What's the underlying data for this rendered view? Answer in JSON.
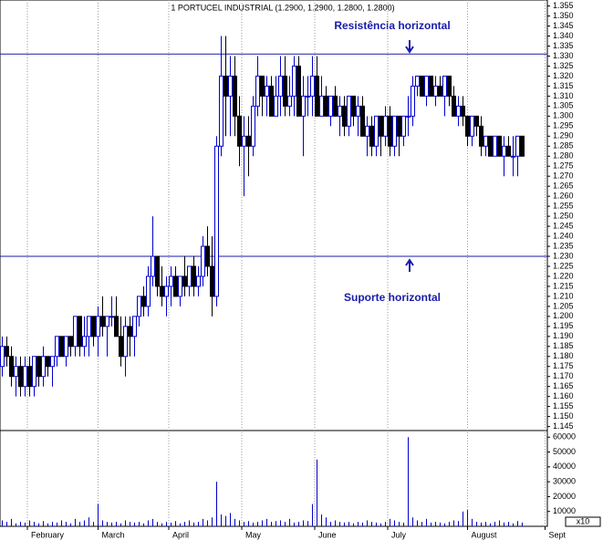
{
  "chart_data": {
    "type": "candlestick",
    "title": "1 PORTUCEL INDUSTRIAL (1.2900, 1.2900, 1.2800, 1.2800)",
    "annotations": [
      "Resistência horizontal",
      "Suporte horizontal"
    ],
    "hlines": [
      1.331,
      1.23
    ],
    "volume_unit": "x10",
    "up_color": "#0000cc",
    "down_color": "#000000",
    "line_color": "#1a1aaa",
    "grid": true,
    "xlim": [
      0,
      120
    ],
    "xticks": [
      {
        "value": 6,
        "label": "February"
      },
      {
        "value": 21.5,
        "label": "March"
      },
      {
        "value": 37,
        "label": "April"
      },
      {
        "value": 53,
        "label": "May"
      },
      {
        "value": 69,
        "label": "June"
      },
      {
        "value": 85,
        "label": "July"
      },
      {
        "value": 102.5,
        "label": "August"
      },
      {
        "value": 119.5,
        "label": "Sept"
      }
    ],
    "ylim": [
      1.143,
      1.358
    ],
    "yticks": [
      1.145,
      {
        "value": 1.15,
        "label": "1.150"
      },
      1.155,
      {
        "value": 1.16,
        "label": "1.160"
      },
      1.165,
      {
        "value": 1.17,
        "label": "1.170"
      },
      1.175,
      {
        "value": 1.18,
        "label": "1.180"
      },
      1.185,
      {
        "value": 1.19,
        "label": "1.190"
      },
      1.195,
      {
        "value": 1.2,
        "label": "1.200"
      },
      1.205,
      {
        "value": 1.21,
        "label": "1.210"
      },
      1.215,
      {
        "value": 1.22,
        "label": "1.220"
      },
      1.225,
      {
        "value": 1.23,
        "label": "1.230"
      },
      1.235,
      {
        "value": 1.24,
        "label": "1.240"
      },
      1.245,
      {
        "value": 1.25,
        "label": "1.250"
      },
      1.255,
      {
        "value": 1.26,
        "label": "1.260"
      },
      1.265,
      {
        "value": 1.27,
        "label": "1.270"
      },
      1.275,
      {
        "value": 1.28,
        "label": "1.280"
      },
      1.285,
      {
        "value": 1.29,
        "label": "1.290"
      },
      1.295,
      {
        "value": 1.3,
        "label": "1.300"
      },
      1.305,
      {
        "value": 1.31,
        "label": "1.310"
      },
      1.315,
      {
        "value": 1.32,
        "label": "1.320"
      },
      1.325,
      {
        "value": 1.33,
        "label": "1.330"
      },
      1.335,
      {
        "value": 1.34,
        "label": "1.340"
      },
      1.345,
      {
        "value": 1.35,
        "label": "1.350"
      },
      1.355
    ],
    "y2lim": [
      0,
      62000
    ],
    "y2ticks": [
      10000,
      20000,
      30000,
      40000,
      50000,
      60000
    ],
    "candles": [
      [
        1.175,
        1.19,
        1.17,
        1.185
      ],
      [
        1.185,
        1.19,
        1.175,
        1.18
      ],
      [
        1.18,
        1.185,
        1.165,
        1.17
      ],
      [
        1.17,
        1.18,
        1.16,
        1.175
      ],
      [
        1.175,
        1.18,
        1.16,
        1.165
      ],
      [
        1.165,
        1.18,
        1.16,
        1.175
      ],
      [
        1.175,
        1.18,
        1.16,
        1.165
      ],
      [
        1.165,
        1.18,
        1.16,
        1.18
      ],
      [
        1.18,
        1.18,
        1.165,
        1.17
      ],
      [
        1.17,
        1.185,
        1.165,
        1.18
      ],
      [
        1.18,
        1.18,
        1.17,
        1.175
      ],
      [
        1.175,
        1.18,
        1.165,
        1.18
      ],
      [
        1.18,
        1.19,
        1.175,
        1.19
      ],
      [
        1.19,
        1.19,
        1.18,
        1.18
      ],
      [
        1.18,
        1.19,
        1.175,
        1.19
      ],
      [
        1.19,
        1.19,
        1.18,
        1.185
      ],
      [
        1.185,
        1.2,
        1.18,
        1.2
      ],
      [
        1.2,
        1.2,
        1.18,
        1.185
      ],
      [
        1.185,
        1.2,
        1.18,
        1.19
      ],
      [
        1.19,
        1.2,
        1.18,
        1.2
      ],
      [
        1.2,
        1.2,
        1.185,
        1.19
      ],
      [
        1.19,
        1.205,
        1.18,
        1.2
      ],
      [
        1.2,
        1.21,
        1.19,
        1.195
      ],
      [
        1.195,
        1.2,
        1.18,
        1.2
      ],
      [
        1.2,
        1.21,
        1.195,
        1.2
      ],
      [
        1.2,
        1.21,
        1.19,
        1.19
      ],
      [
        1.19,
        1.2,
        1.175,
        1.18
      ],
      [
        1.18,
        1.2,
        1.17,
        1.195
      ],
      [
        1.195,
        1.2,
        1.18,
        1.19
      ],
      [
        1.19,
        1.2,
        1.18,
        1.2
      ],
      [
        1.2,
        1.21,
        1.195,
        1.21
      ],
      [
        1.21,
        1.215,
        1.2,
        1.205
      ],
      [
        1.205,
        1.225,
        1.2,
        1.22
      ],
      [
        1.22,
        1.25,
        1.215,
        1.23
      ],
      [
        1.23,
        1.23,
        1.21,
        1.215
      ],
      [
        1.215,
        1.225,
        1.205,
        1.21
      ],
      [
        1.21,
        1.22,
        1.2,
        1.215
      ],
      [
        1.215,
        1.225,
        1.205,
        1.22
      ],
      [
        1.22,
        1.225,
        1.21,
        1.21
      ],
      [
        1.21,
        1.22,
        1.205,
        1.22
      ],
      [
        1.22,
        1.23,
        1.21,
        1.215
      ],
      [
        1.215,
        1.225,
        1.21,
        1.225
      ],
      [
        1.225,
        1.23,
        1.21,
        1.215
      ],
      [
        1.215,
        1.225,
        1.21,
        1.22
      ],
      [
        1.22,
        1.24,
        1.215,
        1.235
      ],
      [
        1.235,
        1.245,
        1.22,
        1.225
      ],
      [
        1.225,
        1.24,
        1.2,
        1.21
      ],
      [
        1.21,
        1.29,
        1.205,
        1.285
      ],
      [
        1.285,
        1.34,
        1.28,
        1.32
      ],
      [
        1.32,
        1.34,
        1.29,
        1.31
      ],
      [
        1.31,
        1.33,
        1.29,
        1.32
      ],
      [
        1.32,
        1.33,
        1.29,
        1.3
      ],
      [
        1.3,
        1.31,
        1.275,
        1.285
      ],
      [
        1.285,
        1.3,
        1.26,
        1.29
      ],
      [
        1.29,
        1.3,
        1.27,
        1.285
      ],
      [
        1.285,
        1.31,
        1.28,
        1.305
      ],
      [
        1.305,
        1.33,
        1.3,
        1.32
      ],
      [
        1.32,
        1.32,
        1.3,
        1.31
      ],
      [
        1.31,
        1.32,
        1.3,
        1.315
      ],
      [
        1.315,
        1.32,
        1.3,
        1.3
      ],
      [
        1.3,
        1.32,
        1.3,
        1.31
      ],
      [
        1.31,
        1.33,
        1.3,
        1.32
      ],
      [
        1.32,
        1.33,
        1.3,
        1.305
      ],
      [
        1.305,
        1.32,
        1.3,
        1.31
      ],
      [
        1.31,
        1.33,
        1.3,
        1.325
      ],
      [
        1.325,
        1.33,
        1.3,
        1.3
      ],
      [
        1.3,
        1.32,
        1.28,
        1.31
      ],
      [
        1.31,
        1.32,
        1.3,
        1.31
      ],
      [
        1.31,
        1.33,
        1.3,
        1.32
      ],
      [
        1.32,
        1.33,
        1.3,
        1.3
      ],
      [
        1.3,
        1.32,
        1.3,
        1.31
      ],
      [
        1.31,
        1.315,
        1.3,
        1.3
      ],
      [
        1.3,
        1.31,
        1.295,
        1.31
      ],
      [
        1.31,
        1.315,
        1.3,
        1.3
      ],
      [
        1.3,
        1.31,
        1.29,
        1.305
      ],
      [
        1.305,
        1.31,
        1.29,
        1.295
      ],
      [
        1.295,
        1.31,
        1.29,
        1.31
      ],
      [
        1.31,
        1.31,
        1.295,
        1.3
      ],
      [
        1.3,
        1.31,
        1.29,
        1.305
      ],
      [
        1.305,
        1.31,
        1.29,
        1.29
      ],
      [
        1.29,
        1.3,
        1.28,
        1.295
      ],
      [
        1.295,
        1.3,
        1.28,
        1.285
      ],
      [
        1.285,
        1.3,
        1.28,
        1.3
      ],
      [
        1.3,
        1.3,
        1.28,
        1.29
      ],
      [
        1.29,
        1.305,
        1.285,
        1.3
      ],
      [
        1.3,
        1.305,
        1.28,
        1.285
      ],
      [
        1.285,
        1.3,
        1.28,
        1.3
      ],
      [
        1.3,
        1.3,
        1.28,
        1.29
      ],
      [
        1.29,
        1.3,
        1.285,
        1.3
      ],
      [
        1.3,
        1.31,
        1.29,
        1.3
      ],
      [
        1.3,
        1.32,
        1.295,
        1.315
      ],
      [
        1.315,
        1.32,
        1.31,
        1.32
      ],
      [
        1.32,
        1.32,
        1.31,
        1.31
      ],
      [
        1.31,
        1.32,
        1.305,
        1.32
      ],
      [
        1.32,
        1.32,
        1.31,
        1.31
      ],
      [
        1.31,
        1.32,
        1.305,
        1.315
      ],
      [
        1.315,
        1.32,
        1.31,
        1.31
      ],
      [
        1.31,
        1.32,
        1.3,
        1.32
      ],
      [
        1.32,
        1.32,
        1.305,
        1.31
      ],
      [
        1.31,
        1.315,
        1.3,
        1.3
      ],
      [
        1.3,
        1.31,
        1.295,
        1.305
      ],
      [
        1.305,
        1.31,
        1.295,
        1.3
      ],
      [
        1.3,
        1.3,
        1.285,
        1.29
      ],
      [
        1.29,
        1.3,
        1.285,
        1.3
      ],
      [
        1.3,
        1.3,
        1.29,
        1.295
      ],
      [
        1.295,
        1.3,
        1.28,
        1.285
      ],
      [
        1.285,
        1.29,
        1.28,
        1.29
      ],
      [
        1.29,
        1.29,
        1.28,
        1.28
      ],
      [
        1.28,
        1.29,
        1.28,
        1.29
      ],
      [
        1.29,
        1.29,
        1.28,
        1.28
      ],
      [
        1.28,
        1.29,
        1.27,
        1.285
      ],
      [
        1.285,
        1.29,
        1.28,
        1.28
      ],
      [
        1.28,
        1.29,
        1.27,
        1.28
      ],
      [
        1.28,
        1.29,
        1.27,
        1.29
      ],
      [
        1.29,
        1.29,
        1.28,
        1.28
      ]
    ],
    "volume": [
      4000,
      3000,
      5000,
      2000,
      3000,
      2500,
      4000,
      3000,
      2000,
      3500,
      2000,
      3000,
      2500,
      4000,
      3000,
      2000,
      5000,
      3000,
      4000,
      6000,
      3000,
      15000,
      4000,
      3000,
      2500,
      3000,
      2000,
      4000,
      3000,
      2500,
      3000,
      2000,
      4000,
      5000,
      3000,
      2000,
      3000,
      2500,
      3500,
      2000,
      3000,
      4000,
      2500,
      3000,
      5000,
      4000,
      6000,
      30000,
      8000,
      7000,
      9000,
      5000,
      4000,
      3000,
      3500,
      2500,
      3000,
      4000,
      5000,
      3000,
      3500,
      4000,
      3000,
      5000,
      2500,
      3000,
      4000,
      3500,
      15000,
      45000,
      8000,
      6000,
      3000,
      4000,
      3000,
      2500,
      3000,
      2000,
      3000,
      2500,
      4000,
      3000,
      2500,
      2000,
      3000,
      5000,
      4000,
      3000,
      2500,
      60000,
      6000,
      4000,
      3000,
      5000,
      2500,
      3000,
      2500,
      2000,
      3000,
      4000,
      3500,
      10000,
      11000,
      5000,
      3000,
      2500,
      3000,
      2000,
      3000,
      4000,
      2500,
      3000,
      2000,
      3500,
      2500
    ]
  }
}
